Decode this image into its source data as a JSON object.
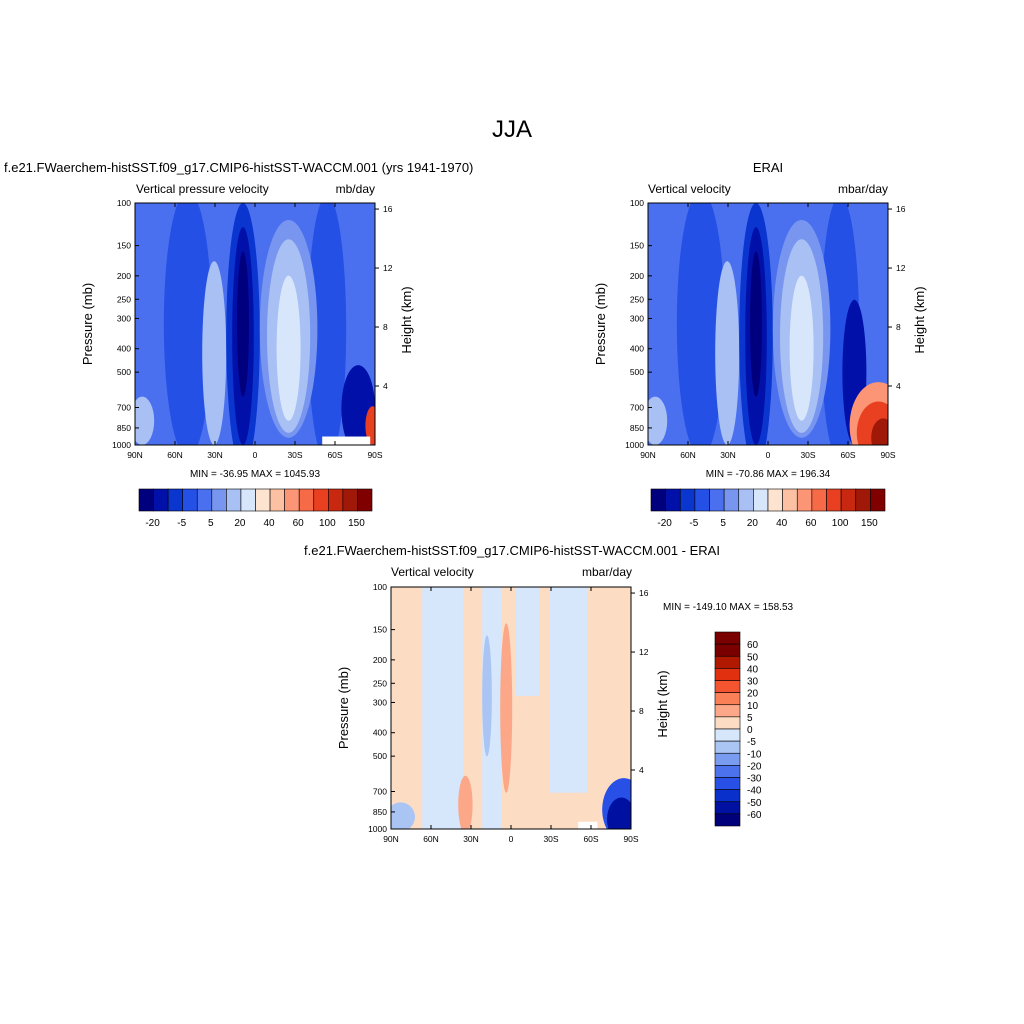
{
  "figure": {
    "title": "JJA"
  },
  "panels": [
    {
      "id": "model",
      "run_label": "f.e21.FWaerchem-histSST.f09_g17.CMIP6-histSST-WACCM.001 (yrs 1941-1970)",
      "left_label": "Vertical pressure velocity",
      "right_label": "mb/day",
      "stats": "MIN = -36.95  MAX = 1045.93"
    },
    {
      "id": "obs",
      "run_label": "ERAI",
      "left_label": "Vertical velocity",
      "right_label": "mbar/day",
      "stats": "MIN = -70.86  MAX = 196.34"
    },
    {
      "id": "diff",
      "run_label": "f.e21.FWaerchem-histSST.f09_g17.CMIP6-histSST-WACCM.001 - ERAI",
      "left_label": "Vertical velocity",
      "right_label": "mbar/day",
      "stats": "MIN = -149.10  MAX = 158.53"
    }
  ],
  "axes": {
    "ylabel": "Pressure (mb)",
    "y2label": "Height (km)",
    "pressure_ticks": [
      "100",
      "150",
      "200",
      "250",
      "300",
      "400",
      "500",
      "700",
      "850",
      "1000"
    ],
    "pressure_values": [
      100,
      150,
      200,
      250,
      300,
      400,
      500,
      700,
      850,
      1000
    ],
    "height_ticks": [
      "16",
      "12",
      "8",
      "4"
    ],
    "height_values": [
      16,
      12,
      8,
      4
    ],
    "lat_ticks": [
      "90N",
      "60N",
      "30N",
      "0",
      "30S",
      "60S",
      "90S"
    ],
    "lat_values": [
      90,
      60,
      30,
      0,
      -30,
      -60,
      -90
    ]
  },
  "colorbars": {
    "main_colors": [
      "#00007f",
      "#0010a8",
      "#0a35cf",
      "#2550e6",
      "#4a70f0",
      "#7896f0",
      "#a8c0f4",
      "#d8e6fb",
      "#fde4d0",
      "#fcc0a3",
      "#fb9575",
      "#f66a48",
      "#e84020",
      "#c82810",
      "#a01808",
      "#800000"
    ],
    "main_labels": [
      "-20",
      "-5",
      "5",
      "20",
      "40",
      "60",
      "100",
      "150"
    ],
    "diff_colors": [
      "#7a0000",
      "#b01800",
      "#e03010",
      "#f45530",
      "#fa8058",
      "#fca888",
      "#fddcc4",
      "#d6e6fb",
      "#aac4f4",
      "#7a9cf0",
      "#4c72ee",
      "#2850e6",
      "#0a30cc",
      "#0010a0",
      "#00007a"
    ],
    "diff_labels": [
      "60",
      "50",
      "40",
      "30",
      "20",
      "10",
      "5",
      "0",
      "-5",
      "-10",
      "-20",
      "-30",
      "-40",
      "-50",
      "-60"
    ]
  },
  "chart_data": [
    {
      "type": "heatmap",
      "title": "Vertical pressure velocity",
      "units": "mb/day",
      "xlabel": "",
      "ylabel": "Pressure (mb)",
      "y2label": "Height (km)",
      "xlim": [
        "90N",
        "90S"
      ],
      "ylim": [
        1000,
        100
      ],
      "y2lim": [
        0,
        16
      ],
      "y_scale": "log",
      "min": -36.95,
      "max": 1045.93,
      "levels": [
        -20,
        -5,
        5,
        20,
        40,
        60,
        100,
        150
      ]
    },
    {
      "type": "heatmap",
      "title": "Vertical velocity",
      "units": "mbar/day",
      "xlabel": "",
      "ylabel": "Pressure (mb)",
      "y2label": "Height (km)",
      "xlim": [
        "90N",
        "90S"
      ],
      "ylim": [
        1000,
        100
      ],
      "y2lim": [
        0,
        16
      ],
      "y_scale": "log",
      "min": -70.86,
      "max": 196.34,
      "levels": [
        -20,
        -5,
        5,
        20,
        40,
        60,
        100,
        150
      ]
    },
    {
      "type": "heatmap",
      "title": "Vertical velocity",
      "units": "mbar/day",
      "xlabel": "",
      "ylabel": "Pressure (mb)",
      "y2label": "Height (km)",
      "xlim": [
        "90N",
        "90S"
      ],
      "ylim": [
        1000,
        100
      ],
      "y2lim": [
        0,
        16
      ],
      "y_scale": "log",
      "min": -149.1,
      "max": 158.53,
      "levels": [
        -60,
        -50,
        -40,
        -30,
        -20,
        -10,
        -5,
        0,
        5,
        10,
        20,
        30,
        40,
        50,
        60
      ]
    }
  ]
}
